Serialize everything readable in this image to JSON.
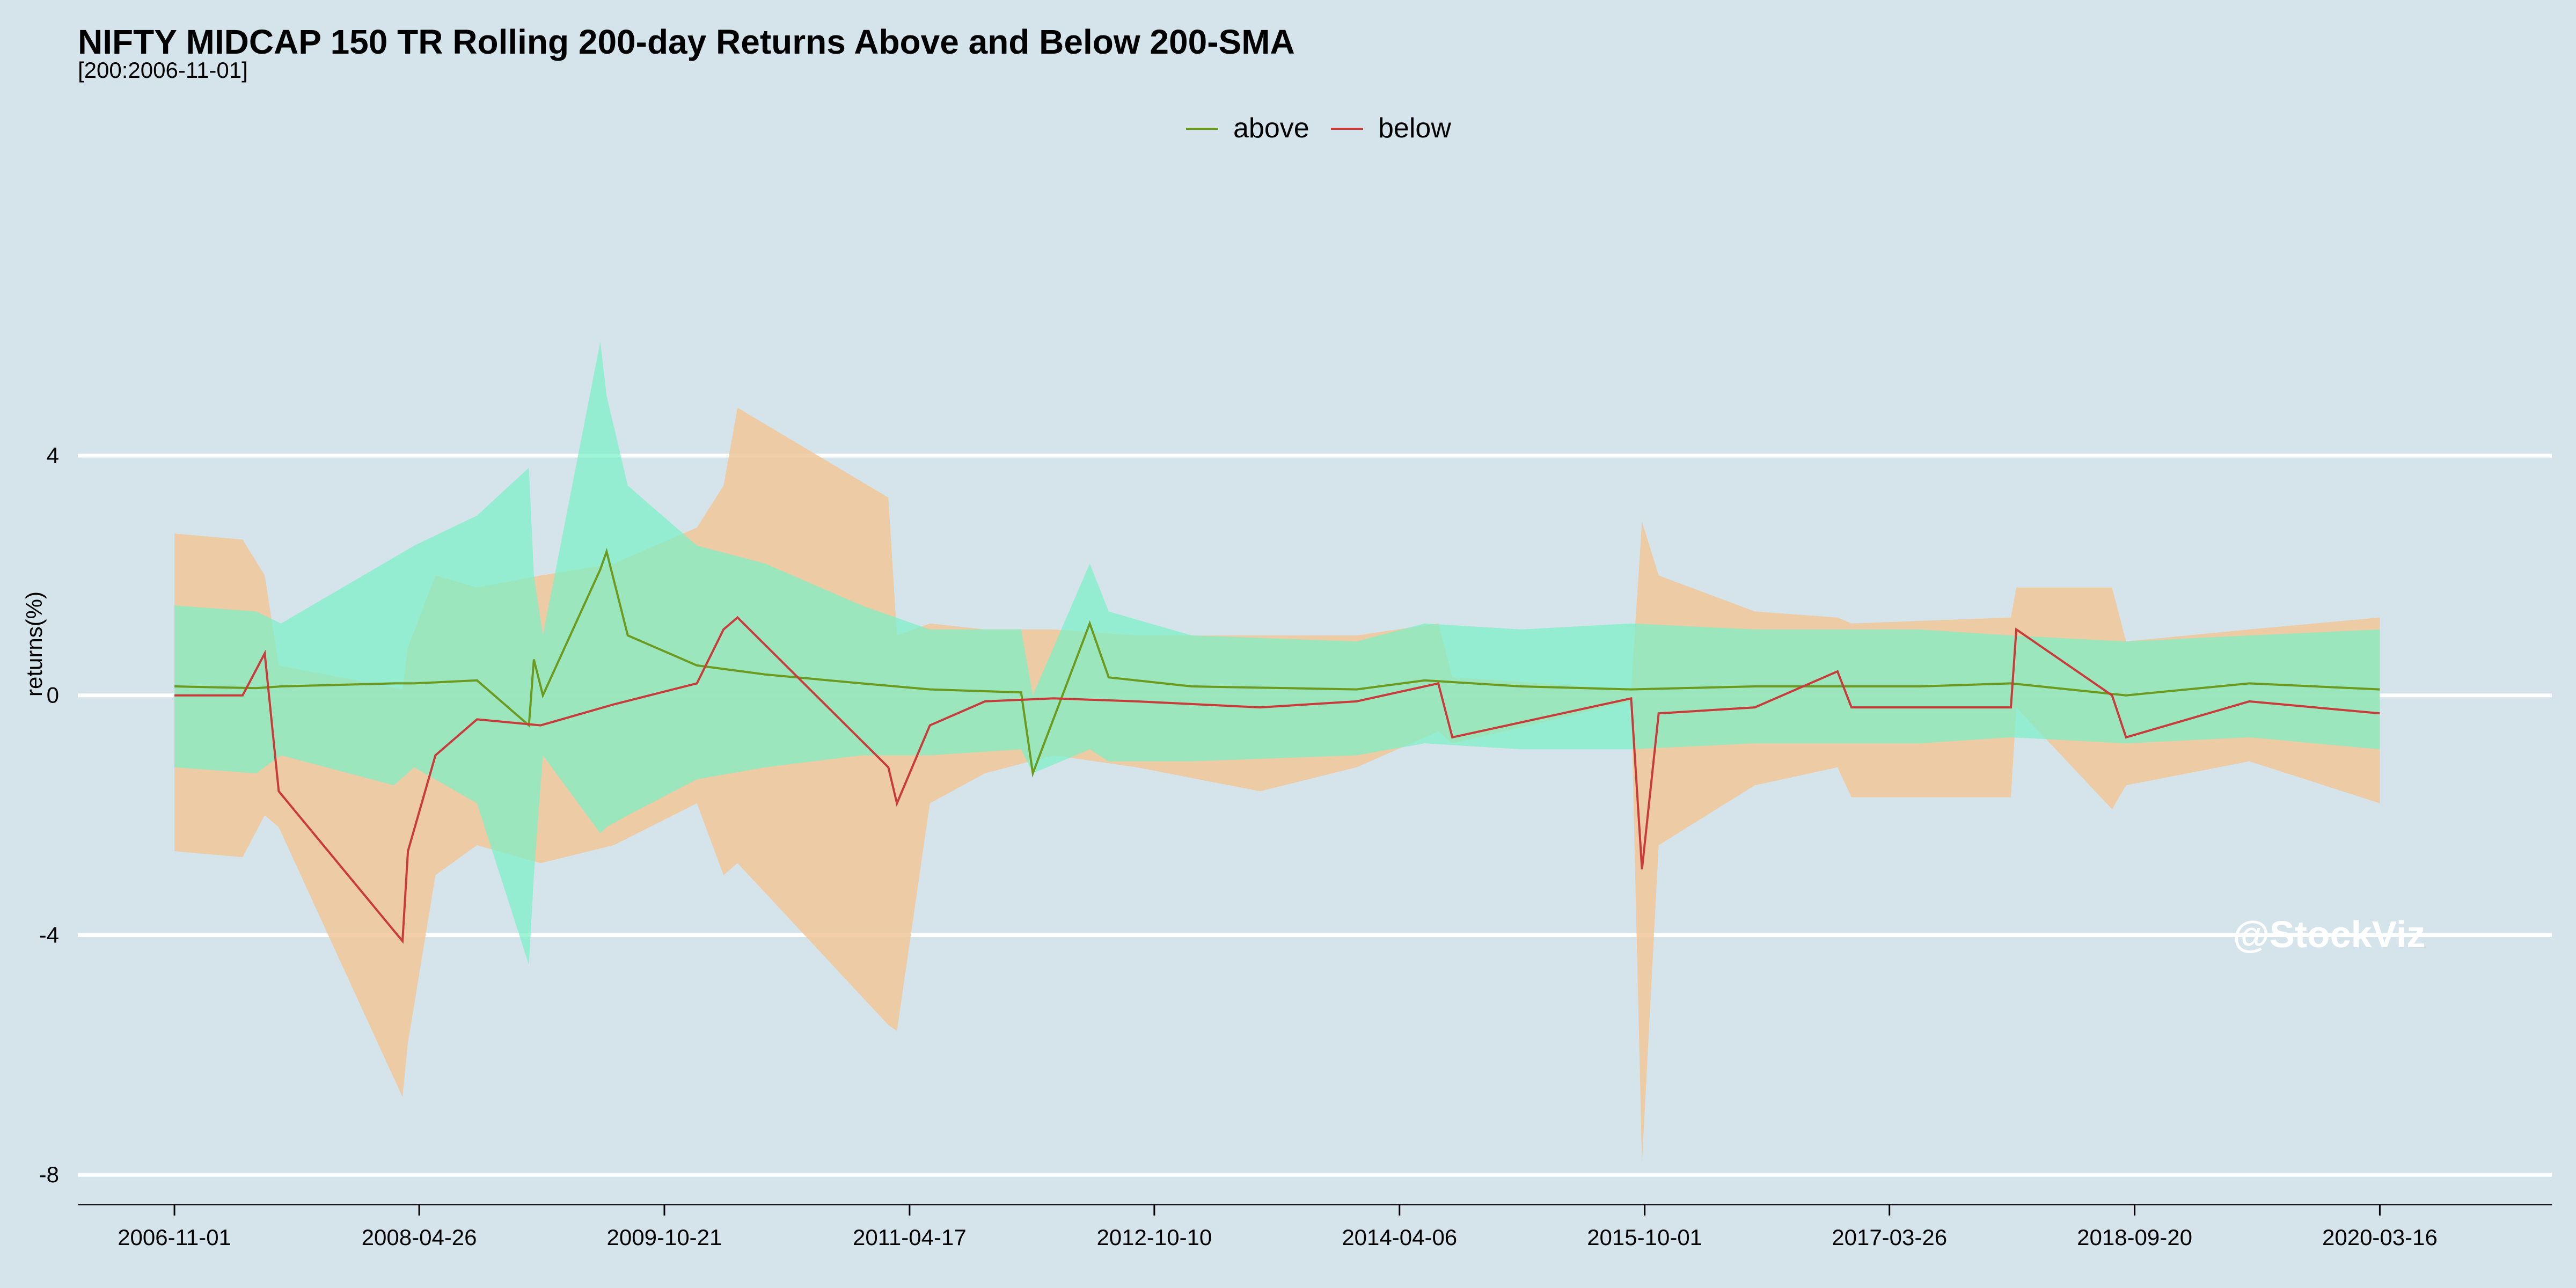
{
  "chart_data": {
    "type": "area",
    "title": "NIFTY MIDCAP 150 TR Rolling 200-day Returns Above and Below 200-SMA",
    "subtitle": "[200:2006-11-01]",
    "xlabel": "",
    "ylabel": "returns(%)",
    "ylim": [
      -8.5,
      8.2
    ],
    "xlim": [
      "2006-04-01",
      "2021-04-01"
    ],
    "y_ticks": [
      4,
      0,
      -4,
      -8
    ],
    "y_tick_labels": [
      "4",
      "0",
      "-4",
      "-8"
    ],
    "x_ticks": [
      "2006-11-01",
      "2008-04-26",
      "2009-10-21",
      "2011-04-17",
      "2012-10-10",
      "2014-04-06",
      "2015-10-01",
      "2017-03-26",
      "2018-09-20",
      "2020-03-16"
    ],
    "grid": "horizontal",
    "legend": "top-center",
    "watermark": "@StockViz",
    "colors": {
      "background": "#d5e4eb",
      "grid": "#ffffff",
      "above_line": "#6b9a1e",
      "below_line": "#c93a3a",
      "above_band": "#7cf0c6",
      "below_band": "#f0c799"
    },
    "series": [
      {
        "name": "above",
        "color": "#6b9a1e",
        "band_color": "#7cf0c6",
        "points": [
          {
            "x": "2006-11-01",
            "y": 0.15,
            "lo": -1.2,
            "hi": 1.5
          },
          {
            "x": "2007-05-01",
            "y": 0.12,
            "lo": -1.3,
            "hi": 1.4
          },
          {
            "x": "2007-06-25",
            "y": 0.15,
            "lo": -1.0,
            "hi": 1.2
          },
          {
            "x": "2008-03-01",
            "y": 0.2,
            "lo": -1.5,
            "hi": 2.3
          },
          {
            "x": "2008-04-15",
            "y": 0.2,
            "lo": -1.2,
            "hi": 2.5
          },
          {
            "x": "2008-09-01",
            "y": 0.25,
            "lo": -1.8,
            "hi": 3.0
          },
          {
            "x": "2008-12-25",
            "y": -0.5,
            "lo": -4.5,
            "hi": 3.8
          },
          {
            "x": "2009-01-05",
            "y": 0.6,
            "lo": -3.0,
            "hi": 2.0
          },
          {
            "x": "2009-01-25",
            "y": 0.0,
            "lo": -1.0,
            "hi": 1.0
          },
          {
            "x": "2009-06-01",
            "y": 2.1,
            "lo": -2.3,
            "hi": 5.9
          },
          {
            "x": "2009-06-15",
            "y": 2.4,
            "lo": -2.2,
            "hi": 5.0
          },
          {
            "x": "2009-08-01",
            "y": 1.0,
            "lo": -2.0,
            "hi": 3.5
          },
          {
            "x": "2010-01-01",
            "y": 0.5,
            "lo": -1.4,
            "hi": 2.5
          },
          {
            "x": "2010-06-01",
            "y": 0.35,
            "lo": -1.2,
            "hi": 2.2
          },
          {
            "x": "2011-01-01",
            "y": 0.2,
            "lo": -1.0,
            "hi": 1.5
          },
          {
            "x": "2011-06-01",
            "y": 0.1,
            "lo": -1.0,
            "hi": 1.1
          },
          {
            "x": "2011-12-20",
            "y": 0.05,
            "lo": -0.9,
            "hi": 1.1
          },
          {
            "x": "2012-01-15",
            "y": -1.3,
            "lo": -1.3,
            "hi": 0.0
          },
          {
            "x": "2012-05-20",
            "y": 1.2,
            "lo": -0.9,
            "hi": 2.2
          },
          {
            "x": "2012-07-01",
            "y": 0.3,
            "lo": -1.1,
            "hi": 1.4
          },
          {
            "x": "2013-01-01",
            "y": 0.15,
            "lo": -1.1,
            "hi": 1.0
          },
          {
            "x": "2014-01-01",
            "y": 0.1,
            "lo": -1.0,
            "hi": 0.9
          },
          {
            "x": "2014-06-01",
            "y": 0.25,
            "lo": -0.8,
            "hi": 1.2
          },
          {
            "x": "2015-01-01",
            "y": 0.15,
            "lo": -0.9,
            "hi": 1.1
          },
          {
            "x": "2015-09-01",
            "y": 0.1,
            "lo": -0.9,
            "hi": 1.2
          },
          {
            "x": "2016-06-01",
            "y": 0.15,
            "lo": -0.8,
            "hi": 1.1
          },
          {
            "x": "2017-06-01",
            "y": 0.15,
            "lo": -0.8,
            "hi": 1.1
          },
          {
            "x": "2017-12-20",
            "y": 0.2,
            "lo": -0.7,
            "hi": 1.0
          },
          {
            "x": "2018-09-01",
            "y": 0.0,
            "lo": -0.8,
            "hi": 0.9
          },
          {
            "x": "2019-06-01",
            "y": 0.2,
            "lo": -0.7,
            "hi": 1.0
          },
          {
            "x": "2020-03-16",
            "y": 0.1,
            "lo": -0.9,
            "hi": 1.1
          }
        ]
      },
      {
        "name": "below",
        "color": "#c93a3a",
        "band_color": "#f0c799",
        "points": [
          {
            "x": "2006-11-01",
            "y": 0.0,
            "lo": -2.6,
            "hi": 2.7
          },
          {
            "x": "2007-04-01",
            "y": 0.0,
            "lo": -2.7,
            "hi": 2.6
          },
          {
            "x": "2007-05-20",
            "y": 0.7,
            "lo": -2.0,
            "hi": 2.0
          },
          {
            "x": "2007-06-20",
            "y": -1.6,
            "lo": -2.2,
            "hi": 0.5
          },
          {
            "x": "2008-03-20",
            "y": -4.1,
            "lo": -6.7,
            "hi": 0.1
          },
          {
            "x": "2008-04-01",
            "y": -2.6,
            "lo": -5.8,
            "hi": 0.8
          },
          {
            "x": "2008-06-01",
            "y": -1.0,
            "lo": -3.0,
            "hi": 2.0
          },
          {
            "x": "2008-09-01",
            "y": -0.4,
            "lo": -2.5,
            "hi": 1.8
          },
          {
            "x": "2009-01-20",
            "y": -0.5,
            "lo": -2.8,
            "hi": 2.0
          },
          {
            "x": "2009-07-01",
            "y": -0.15,
            "lo": -2.5,
            "hi": 2.2
          },
          {
            "x": "2010-01-01",
            "y": 0.2,
            "lo": -1.8,
            "hi": 2.8
          },
          {
            "x": "2010-03-01",
            "y": 1.1,
            "lo": -3.0,
            "hi": 3.5
          },
          {
            "x": "2010-04-01",
            "y": 1.3,
            "lo": -2.8,
            "hi": 4.8
          },
          {
            "x": "2011-03-01",
            "y": -1.2,
            "lo": -5.5,
            "hi": 3.3
          },
          {
            "x": "2011-03-20",
            "y": -1.8,
            "lo": -5.6,
            "hi": 1.0
          },
          {
            "x": "2011-06-01",
            "y": -0.5,
            "lo": -1.8,
            "hi": 1.2
          },
          {
            "x": "2011-10-01",
            "y": -0.1,
            "lo": -1.3,
            "hi": 1.1
          },
          {
            "x": "2012-03-01",
            "y": -0.05,
            "lo": -1.0,
            "hi": 1.1
          },
          {
            "x": "2012-09-01",
            "y": -0.1,
            "lo": -1.2,
            "hi": 1.0
          },
          {
            "x": "2013-06-01",
            "y": -0.2,
            "lo": -1.6,
            "hi": 1.0
          },
          {
            "x": "2014-01-01",
            "y": -0.1,
            "lo": -1.2,
            "hi": 1.0
          },
          {
            "x": "2014-07-01",
            "y": 0.2,
            "lo": -0.6,
            "hi": 1.2
          },
          {
            "x": "2014-08-01",
            "y": -0.7,
            "lo": -0.8,
            "hi": 0.3
          },
          {
            "x": "2015-09-01",
            "y": -0.05,
            "lo": -0.1,
            "hi": 0.1
          },
          {
            "x": "2015-09-25",
            "y": -2.9,
            "lo": -7.8,
            "hi": 2.9
          },
          {
            "x": "2015-11-01",
            "y": -0.3,
            "lo": -2.5,
            "hi": 2.0
          },
          {
            "x": "2016-06-01",
            "y": -0.2,
            "lo": -1.5,
            "hi": 1.4
          },
          {
            "x": "2016-12-01",
            "y": 0.4,
            "lo": -1.2,
            "hi": 1.3
          },
          {
            "x": "2017-01-01",
            "y": -0.2,
            "lo": -1.7,
            "hi": 1.2
          },
          {
            "x": "2017-12-20",
            "y": -0.2,
            "lo": -1.7,
            "hi": 1.3
          },
          {
            "x": "2018-01-01",
            "y": 1.1,
            "lo": -0.2,
            "hi": 1.8
          },
          {
            "x": "2018-08-01",
            "y": 0.0,
            "lo": -1.9,
            "hi": 1.8
          },
          {
            "x": "2018-09-01",
            "y": -0.7,
            "lo": -1.5,
            "hi": 0.9
          },
          {
            "x": "2019-06-01",
            "y": -0.1,
            "lo": -1.1,
            "hi": 1.1
          },
          {
            "x": "2020-03-16",
            "y": -0.3,
            "lo": -1.8,
            "hi": 1.3
          }
        ]
      }
    ]
  }
}
